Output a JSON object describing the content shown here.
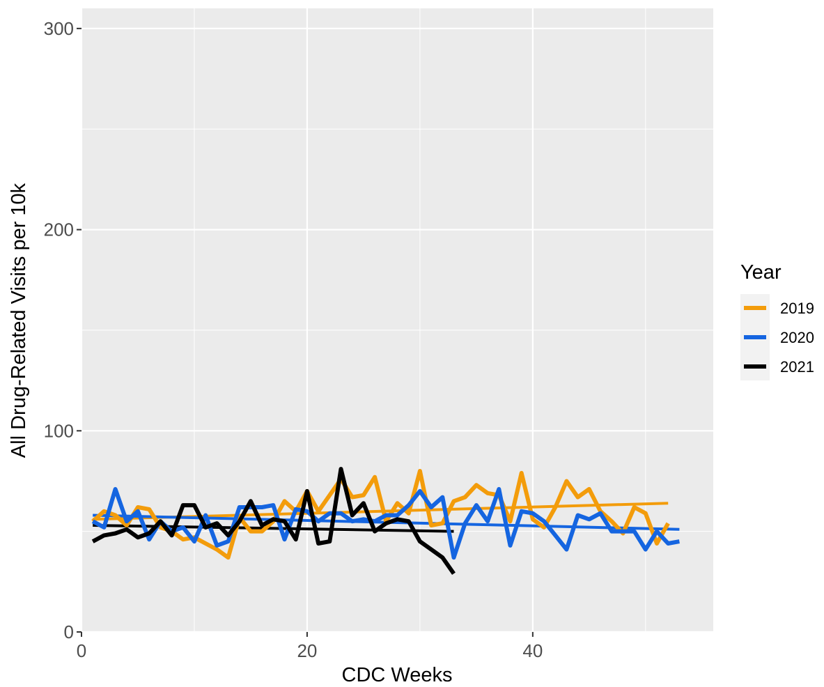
{
  "chart_data": {
    "type": "line",
    "xlabel": "CDC Weeks",
    "ylabel": "All Drug-Related Visits per 10k",
    "xlim": [
      0,
      56
    ],
    "ylim": [
      0,
      310
    ],
    "x_ticks": [
      0,
      20,
      40
    ],
    "y_ticks": [
      0,
      100,
      200,
      300
    ],
    "grid": true,
    "legend": {
      "title": "Year",
      "placement": "right"
    },
    "series": [
      {
        "name": "2019",
        "color": "#F39C0B",
        "x": [
          1,
          2,
          3,
          4,
          5,
          6,
          7,
          8,
          9,
          10,
          11,
          12,
          13,
          14,
          15,
          16,
          17,
          18,
          19,
          20,
          21,
          22,
          23,
          24,
          25,
          26,
          27,
          28,
          29,
          30,
          31,
          32,
          33,
          34,
          35,
          36,
          37,
          38,
          39,
          40,
          41,
          42,
          43,
          44,
          45,
          46,
          47,
          48,
          49,
          50,
          51,
          52
        ],
        "y": [
          55,
          60,
          58,
          53,
          62,
          61,
          52,
          50,
          46,
          47,
          44,
          41,
          37,
          57,
          50,
          50,
          55,
          65,
          60,
          70,
          60,
          68,
          76,
          67,
          68,
          77,
          55,
          64,
          59,
          80,
          53,
          54,
          65,
          67,
          73,
          69,
          68,
          55,
          79,
          56,
          52,
          62,
          75,
          67,
          71,
          60,
          55,
          49,
          62,
          59,
          44,
          54
        ],
        "trend": [
          56,
          64
        ]
      },
      {
        "name": "2020",
        "color": "#1565E0",
        "x": [
          1,
          2,
          3,
          4,
          5,
          6,
          7,
          8,
          9,
          10,
          11,
          12,
          13,
          14,
          15,
          16,
          17,
          18,
          19,
          20,
          21,
          22,
          23,
          24,
          25,
          26,
          27,
          28,
          29,
          30,
          31,
          32,
          33,
          34,
          35,
          36,
          37,
          38,
          39,
          40,
          41,
          42,
          43,
          44,
          45,
          46,
          47,
          48,
          49,
          50,
          51,
          52,
          53
        ],
        "y": [
          55,
          52,
          71,
          55,
          60,
          46,
          55,
          50,
          52,
          45,
          58,
          43,
          45,
          62,
          62,
          62,
          63,
          46,
          61,
          60,
          55,
          59,
          59,
          55,
          56,
          55,
          58,
          58,
          63,
          70,
          62,
          67,
          37,
          54,
          63,
          55,
          71,
          43,
          60,
          59,
          55,
          48,
          41,
          58,
          56,
          59,
          50,
          50,
          50,
          41,
          50,
          44,
          45
        ],
        "trend": [
          58,
          51
        ]
      },
      {
        "name": "2021",
        "color": "#000000",
        "x": [
          1,
          2,
          3,
          4,
          5,
          6,
          7,
          8,
          9,
          10,
          11,
          12,
          13,
          14,
          15,
          16,
          17,
          18,
          19,
          20,
          21,
          22,
          23,
          24,
          25,
          26,
          27,
          28,
          29,
          30,
          31,
          32,
          33
        ],
        "y": [
          45,
          48,
          49,
          51,
          47,
          49,
          55,
          48,
          63,
          63,
          52,
          54,
          48,
          55,
          65,
          53,
          56,
          55,
          46,
          70,
          44,
          45,
          81,
          58,
          64,
          50,
          54,
          56,
          55,
          45,
          41,
          37,
          29
        ],
        "trend": [
          53,
          50
        ]
      }
    ]
  }
}
